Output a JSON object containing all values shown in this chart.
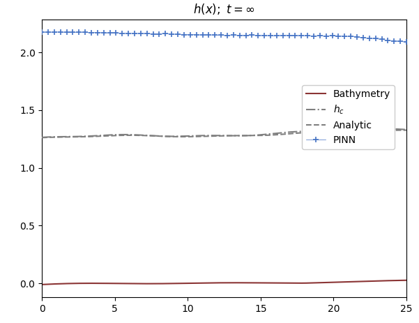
{
  "title": "$h(x);\\ t = \\infty$",
  "xlim": [
    0,
    25
  ],
  "xticks": [
    0,
    5,
    10,
    15,
    20,
    25
  ],
  "yticks": [
    0.0,
    0.5,
    1.0,
    1.5,
    2.0
  ],
  "legend_entries": [
    "PINN",
    "Analytic",
    "$h_c$",
    "Bathymetry"
  ],
  "pinn_color": "#4472C4",
  "analytic_color": "#7f7f7f",
  "hc_color": "#7f7f7f",
  "bath_color": "#8B3535",
  "background_color": "#ffffff",
  "title_fontsize": 12,
  "legend_fontsize": 10,
  "figsize": [
    6.01,
    4.63
  ],
  "dpi": 100
}
